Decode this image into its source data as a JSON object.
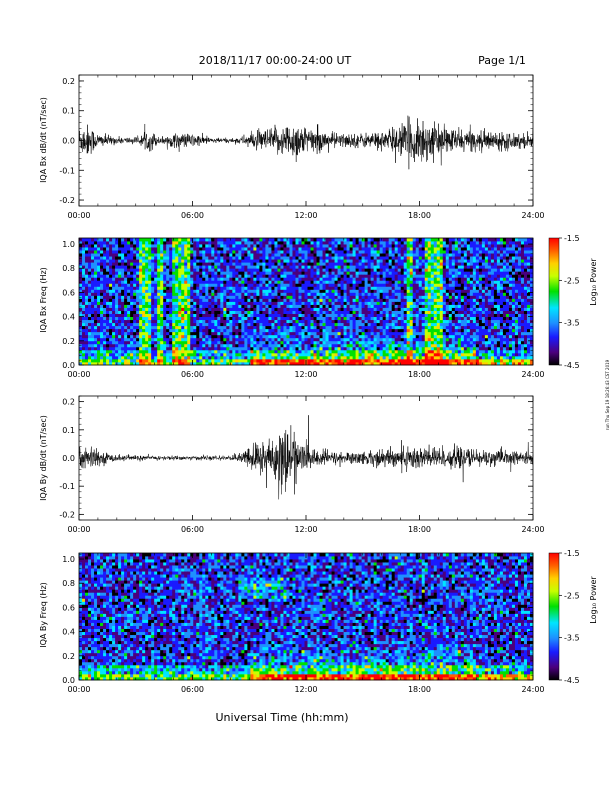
{
  "header": {
    "title": "2018/11/17  00:00-24:00 UT",
    "page": "Page 1/1"
  },
  "xlabel": "Universal Time (hh:mm)",
  "side_note": "run Thu Sep 19 18:26:43 CST 2019",
  "colorbar": {
    "label": "Log₁₀ Power",
    "ticks": [
      "-1.5",
      "-2.5",
      "-3.5",
      "-4.5"
    ],
    "colors": [
      "#000000",
      "#4b007d",
      "#1a1aff",
      "#1e90ff",
      "#00e5ff",
      "#00e000",
      "#c8ff00",
      "#ffd000",
      "#ff6000",
      "#ff0000"
    ]
  },
  "chart_data": [
    {
      "type": "line",
      "name": "bx-waveform",
      "ylabel": "IQA Bx dB/dt (nT/sec)",
      "xlim": [
        0,
        24
      ],
      "ylim": [
        -0.22,
        0.22
      ],
      "x_ticks": [
        "00:00",
        "06:00",
        "12:00",
        "18:00",
        "24:00"
      ],
      "y_ticks": [
        "-0.2",
        "-0.1",
        "0.0",
        "0.1",
        "0.2"
      ],
      "envelope": {
        "x_hours": [
          0,
          0.5,
          1,
          2,
          3.2,
          3.5,
          3.9,
          4.2,
          5,
          6,
          7,
          8,
          8.5,
          9,
          10,
          10.5,
          11,
          11.5,
          12,
          13,
          14,
          15,
          16,
          16.8,
          17.2,
          17.7,
          18,
          18.5,
          19,
          20,
          21,
          22,
          23,
          24
        ],
        "amplitude": [
          0.06,
          0.07,
          0.03,
          0.015,
          0.015,
          0.04,
          0.04,
          0.015,
          0.03,
          0.03,
          0.012,
          0.01,
          0.015,
          0.03,
          0.05,
          0.06,
          0.07,
          0.09,
          0.06,
          0.04,
          0.03,
          0.03,
          0.04,
          0.06,
          0.08,
          0.09,
          0.12,
          0.08,
          0.06,
          0.05,
          0.04,
          0.04,
          0.035,
          0.03
        ]
      }
    },
    {
      "type": "heatmap",
      "name": "bx-spectrogram",
      "ylabel": "IQA Bx Freq (Hz)",
      "xlim": [
        0,
        24
      ],
      "ylim": [
        0,
        1.05
      ],
      "x_ticks": [
        "00:00",
        "06:00",
        "12:00",
        "18:00",
        "24:00"
      ],
      "y_ticks": [
        "0.0",
        "0.2",
        "0.4",
        "0.6",
        "0.8",
        "1.0"
      ],
      "zlim": [
        -4.5,
        -1.5
      ],
      "bright_bands_hours": [
        [
          3.25,
          3.75
        ],
        [
          4.15,
          4.4
        ],
        [
          4.95,
          5.95
        ],
        [
          17.25,
          17.7
        ],
        [
          18.25,
          19.3
        ]
      ]
    },
    {
      "type": "line",
      "name": "by-waveform",
      "ylabel": "IQA By dB/dt (nT/sec)",
      "xlim": [
        0,
        24
      ],
      "ylim": [
        -0.22,
        0.22
      ],
      "x_ticks": [
        "00:00",
        "06:00",
        "12:00",
        "18:00",
        "24:00"
      ],
      "y_ticks": [
        "-0.2",
        "-0.1",
        "0.0",
        "0.1",
        "0.2"
      ],
      "envelope": {
        "x_hours": [
          0,
          0.5,
          1,
          2,
          3,
          4,
          5,
          6,
          7,
          8,
          8.5,
          9,
          9.5,
          10,
          10.5,
          11,
          11.5,
          12,
          13,
          14,
          15,
          16,
          17,
          18,
          19,
          20,
          21,
          22,
          23,
          24
        ],
        "amplitude": [
          0.07,
          0.06,
          0.03,
          0.015,
          0.012,
          0.01,
          0.01,
          0.01,
          0.01,
          0.01,
          0.02,
          0.05,
          0.08,
          0.1,
          0.12,
          0.16,
          0.1,
          0.05,
          0.035,
          0.025,
          0.03,
          0.04,
          0.05,
          0.06,
          0.05,
          0.045,
          0.04,
          0.035,
          0.03,
          0.025
        ]
      }
    },
    {
      "type": "heatmap",
      "name": "by-spectrogram",
      "ylabel": "IQA By Freq (Hz)",
      "xlim": [
        0,
        24
      ],
      "ylim": [
        0,
        1.05
      ],
      "x_ticks": [
        "00:00",
        "06:00",
        "12:00",
        "18:00",
        "24:00"
      ],
      "y_ticks": [
        "0.0",
        "0.2",
        "0.4",
        "0.6",
        "0.8",
        "1.0"
      ],
      "zlim": [
        -4.5,
        -1.5
      ],
      "bright_bands_hours": []
    }
  ]
}
